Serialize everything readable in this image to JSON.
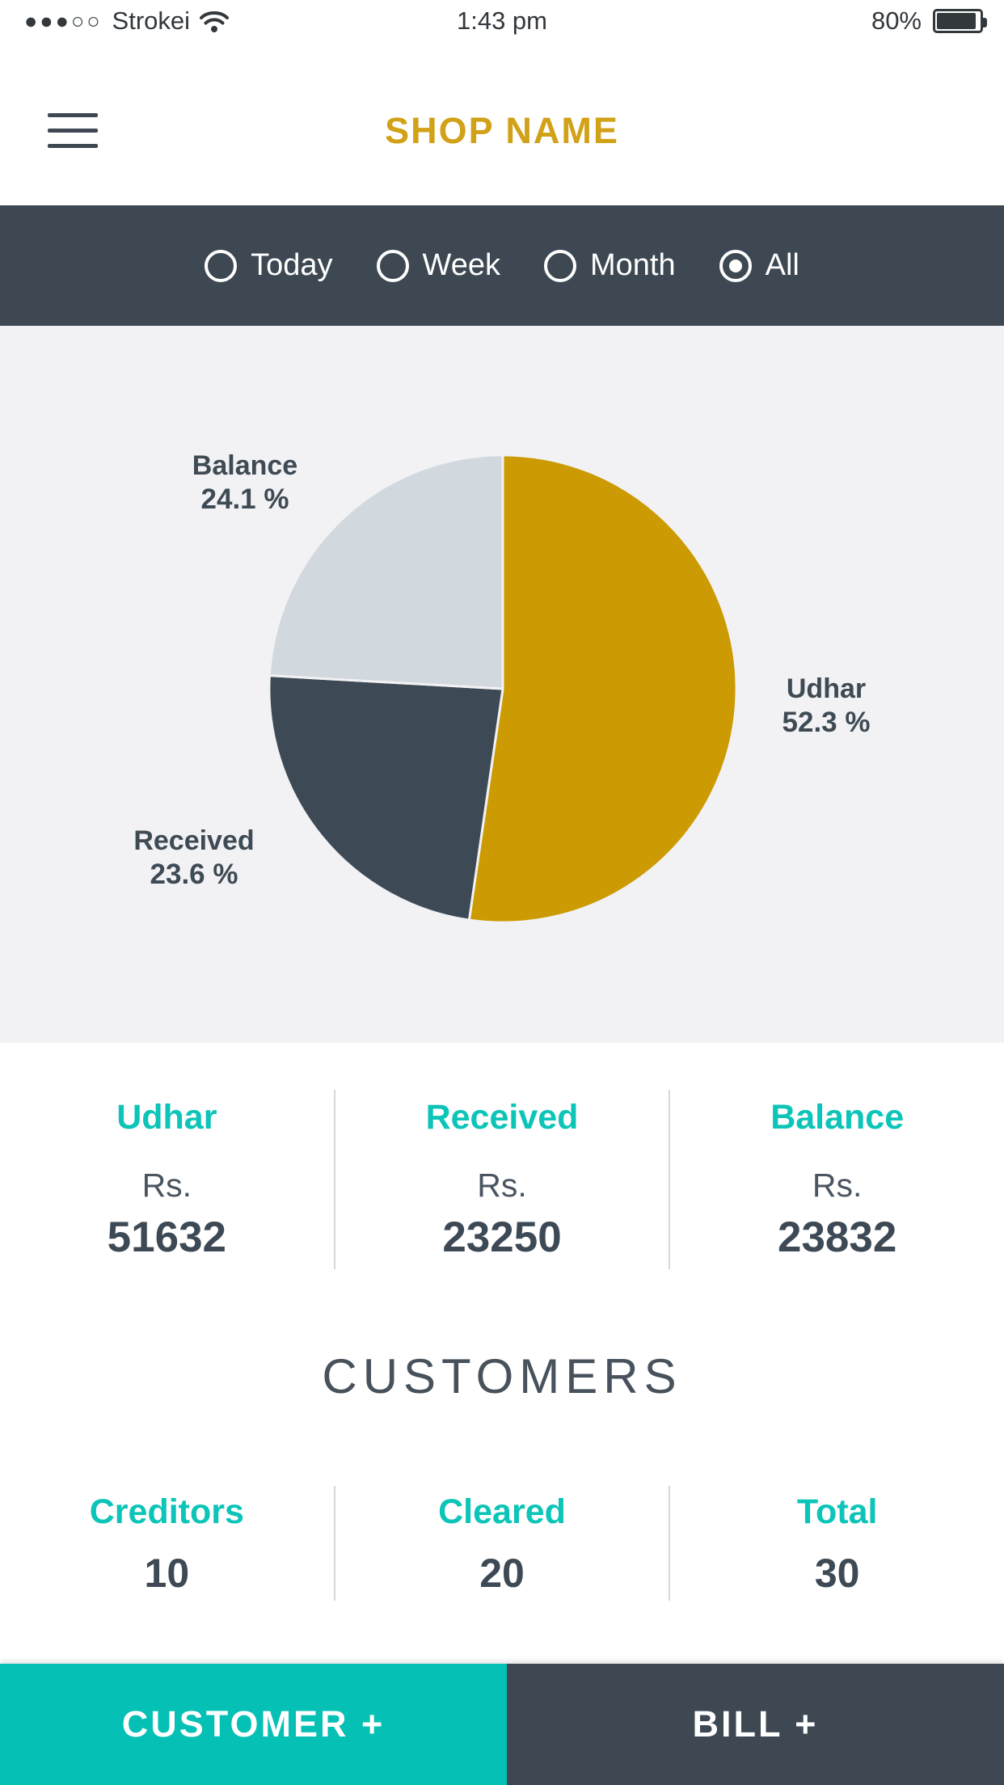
{
  "status_bar": {
    "signal_dots": "●●●○○",
    "carrier": "Strokei",
    "time": "1:43 pm",
    "battery_percent": "80%"
  },
  "header": {
    "title": "SHOP NAME"
  },
  "filters": {
    "options": [
      {
        "label": "Today",
        "selected": false
      },
      {
        "label": "Week",
        "selected": false
      },
      {
        "label": "Month",
        "selected": false
      },
      {
        "label": "All",
        "selected": true
      }
    ]
  },
  "chart_data": {
    "type": "pie",
    "title": "",
    "labels": [
      "Udhar",
      "Received",
      "Balance"
    ],
    "values": [
      52.3,
      23.6,
      24.1
    ],
    "value_texts": [
      "52.3 %",
      "23.6 %",
      "24.1 %"
    ],
    "unit": "%",
    "colors": [
      "#CC9B03",
      "#3D4A55",
      "#D1D8DE"
    ],
    "start_angle_deg": 0,
    "direction": "clockwise",
    "slice_gap_stroke": "#F2F2F4",
    "legend_position": "outside-labels"
  },
  "summary": {
    "items": [
      {
        "label": "Udhar",
        "currency": "Rs.",
        "value": "51632"
      },
      {
        "label": "Received",
        "currency": "Rs.",
        "value": "23250"
      },
      {
        "label": "Balance",
        "currency": "Rs.",
        "value": "23832"
      }
    ]
  },
  "customers": {
    "title": "CUSTOMERS",
    "items": [
      {
        "label": "Creditors",
        "value": "10"
      },
      {
        "label": "Cleared",
        "value": "20"
      },
      {
        "label": "Total",
        "value": "30"
      }
    ]
  },
  "actions": {
    "customer_button": "CUSTOMER +",
    "bill_button": "BILL +"
  },
  "colors": {
    "accent_gold": "#CC9B03",
    "accent_teal": "#04C0B5",
    "heading_teal": "#0CC4B8",
    "dark_slate": "#3D4852",
    "pie_dark": "#3D4A55",
    "pie_light": "#D1D8DE",
    "chart_bg": "#F2F2F4",
    "text_dark": "#3D4A55"
  }
}
